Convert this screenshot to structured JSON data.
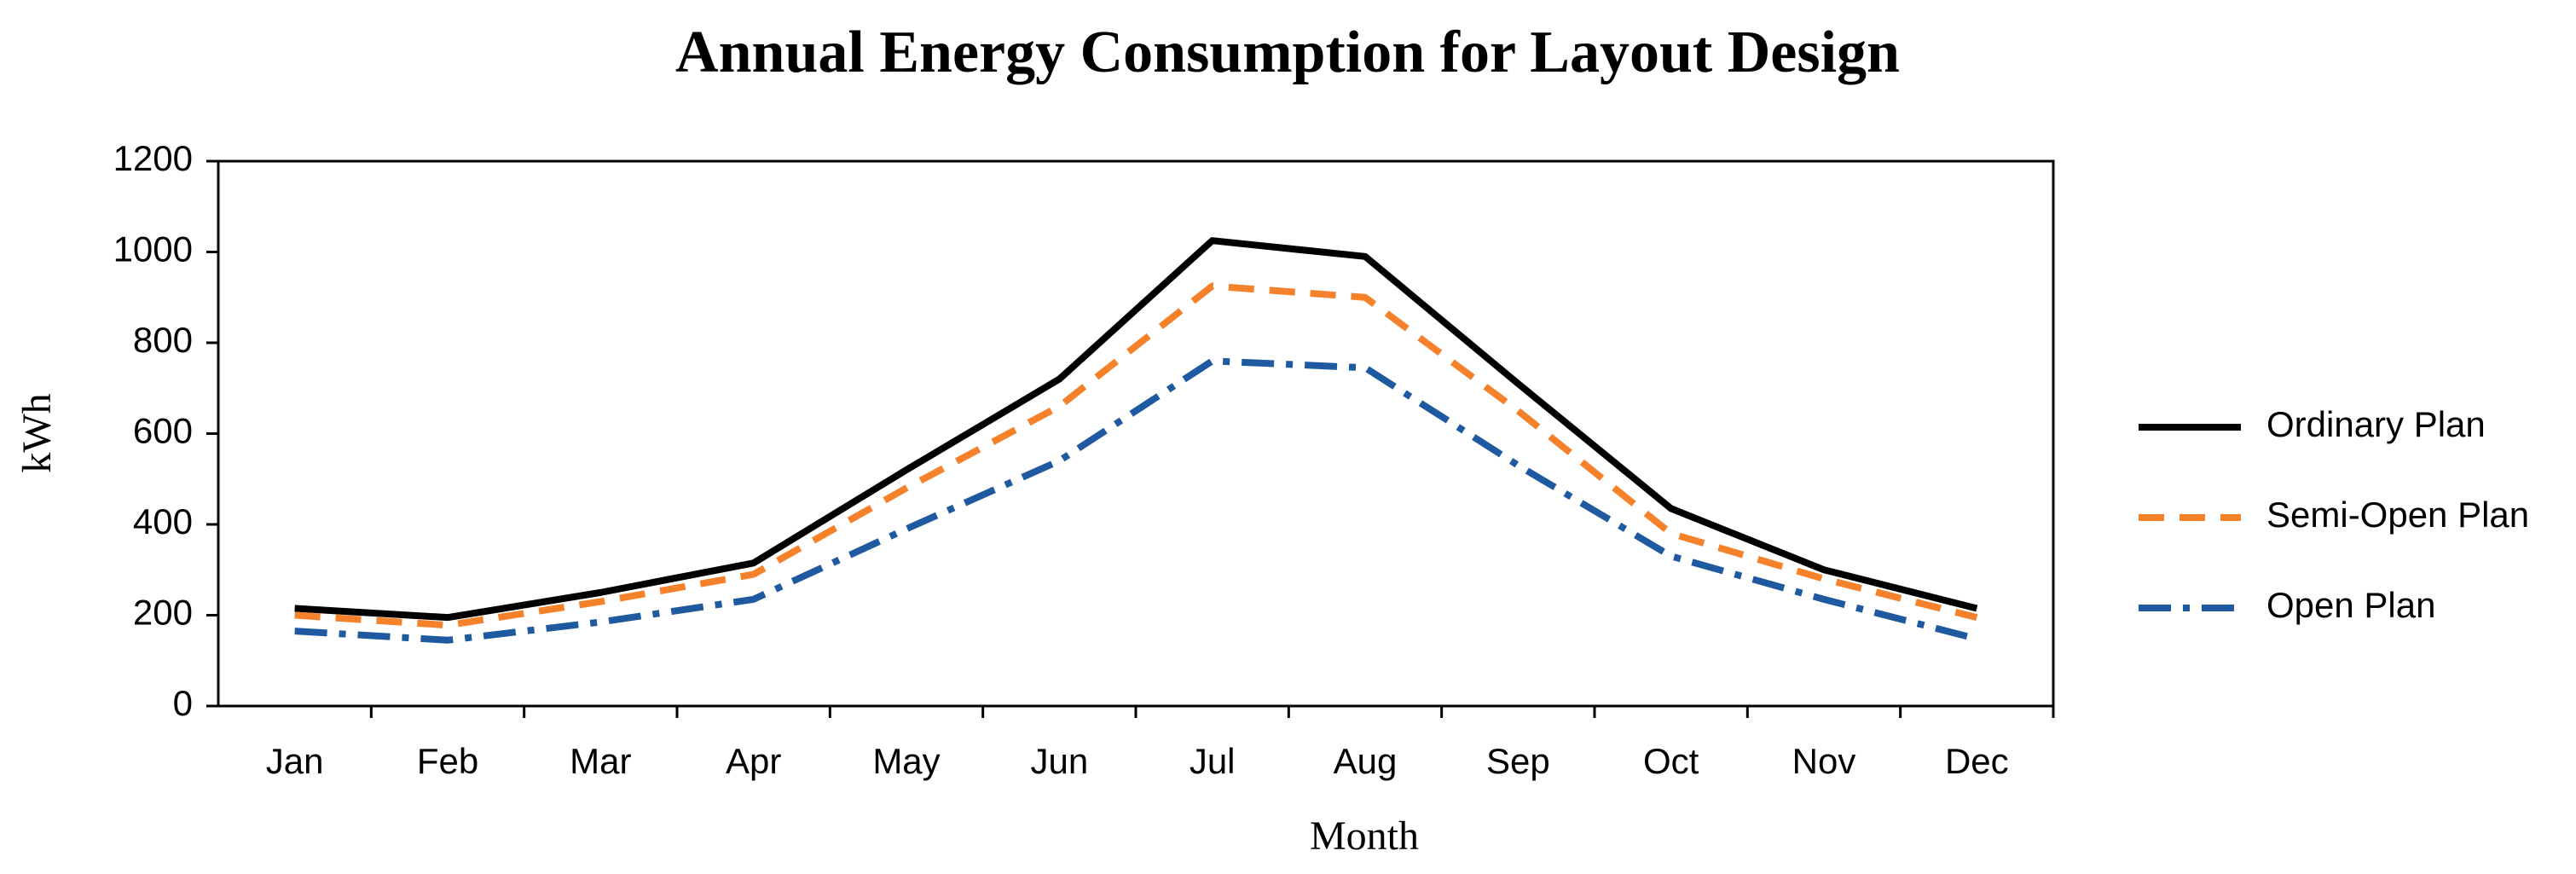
{
  "chart_data": {
    "type": "line",
    "title": "Annual Energy Consumption for Layout Design",
    "x_label": "Month",
    "y_label": "kWh",
    "categories": [
      "Jan",
      "Feb",
      "Mar",
      "Apr",
      "May",
      "Jun",
      "Jul",
      "Aug",
      "Sep",
      "Oct",
      "Nov",
      "Dec"
    ],
    "series": [
      {
        "name": "Ordinary Plan",
        "color": "#000000",
        "style": "solid",
        "values": [
          215,
          195,
          250,
          315,
          520,
          720,
          1025,
          990,
          710,
          435,
          300,
          215
        ]
      },
      {
        "name": "Semi-Open Plan",
        "color": "#f5822a",
        "style": "dashed",
        "values": [
          200,
          178,
          230,
          290,
          480,
          660,
          925,
          900,
          650,
          380,
          280,
          195
        ]
      },
      {
        "name": "Open Plan",
        "color": "#1f5aa0",
        "style": "dashdot",
        "values": [
          165,
          145,
          185,
          235,
          390,
          540,
          760,
          745,
          530,
          330,
          235,
          148
        ]
      }
    ],
    "ylim": [
      0,
      1200
    ],
    "yticks": [
      0,
      200,
      400,
      600,
      800,
      1000,
      1200
    ],
    "grid": false,
    "legend": "right"
  }
}
